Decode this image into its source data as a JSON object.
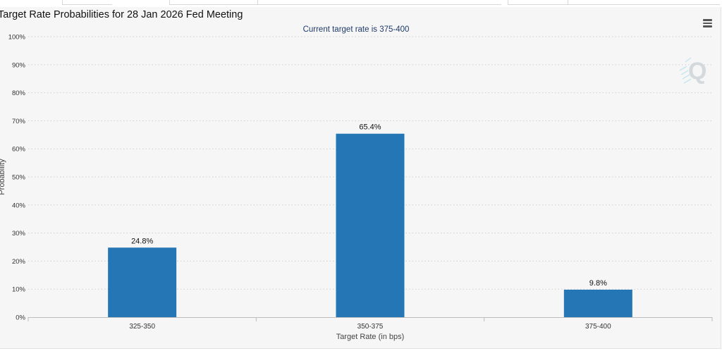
{
  "chart_data": {
    "type": "bar",
    "title": "Target Rate Probabilities for 28 Jan 2026 Fed Meeting",
    "subtitle": "Current target rate is 375-400",
    "xlabel": "Target Rate (in bps)",
    "ylabel": "Probability",
    "categories": [
      "325-350",
      "350-375",
      "375-400"
    ],
    "values": [
      24.8,
      65.4,
      9.8
    ],
    "data_labels": [
      "24.8%",
      "65.4%",
      "9.8%"
    ],
    "ylim": [
      0,
      100
    ],
    "yticks": [
      0,
      10,
      20,
      30,
      40,
      50,
      60,
      70,
      80,
      90,
      100
    ],
    "ytick_suffix": "%",
    "grid": "horizontal-dotted",
    "legend": "none",
    "bar_color": "#2576b4"
  },
  "watermark_icon": "q-logo-icon",
  "menu_icon": "hamburger-menu-icon"
}
